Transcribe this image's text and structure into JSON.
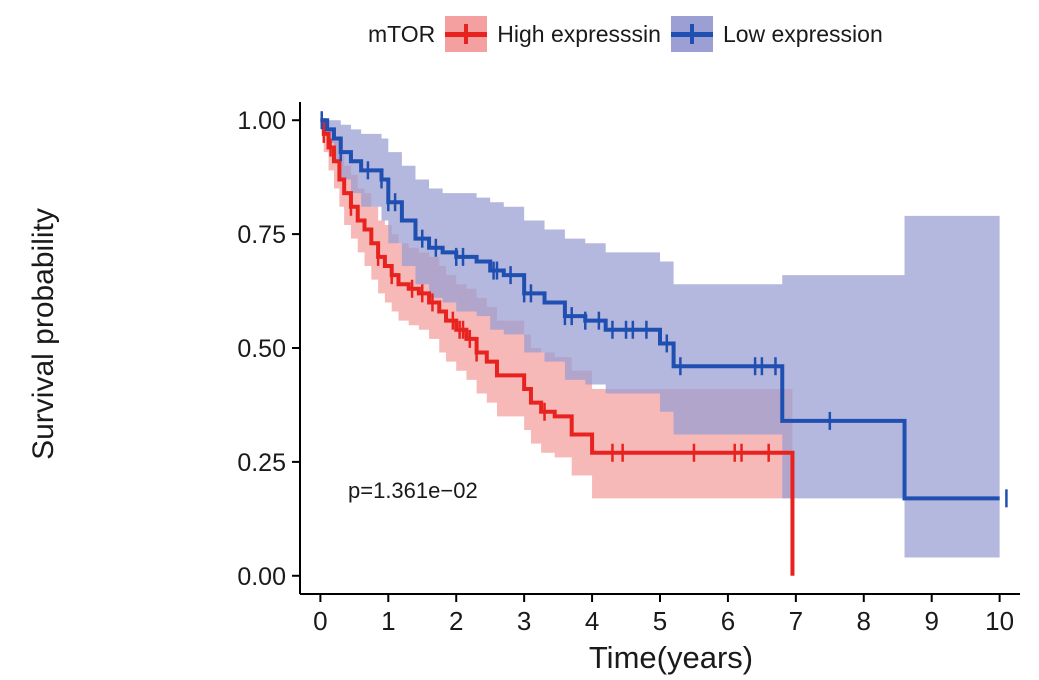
{
  "chart_data": {
    "type": "line",
    "legend": {
      "title": "mTOR",
      "placement": "top"
    },
    "xlabel": "Time(years)",
    "ylabel": "Survival probability",
    "xlim": [
      -0.3,
      10.3
    ],
    "ylim": [
      -0.04,
      1.04
    ],
    "xticks": [
      "0",
      "1",
      "2",
      "3",
      "4",
      "5",
      "6",
      "7",
      "8",
      "9",
      "10"
    ],
    "yticks": [
      "0.00",
      "0.25",
      "0.50",
      "0.75",
      "1.00"
    ],
    "annotation": "p=1.361e−02",
    "series": [
      {
        "name": "High expresssin",
        "color": "#e8231f",
        "band_color": "#f4a0a0",
        "x": [
          0,
          0.05,
          0.12,
          0.2,
          0.28,
          0.35,
          0.45,
          0.55,
          0.65,
          0.75,
          0.85,
          0.95,
          1.05,
          1.15,
          1.3,
          1.45,
          1.6,
          1.75,
          1.85,
          2.0,
          2.15,
          2.3,
          2.45,
          2.6,
          2.8,
          3.0,
          3.1,
          3.25,
          3.45,
          3.7,
          4.0,
          4.3,
          5.5,
          6.0,
          6.9,
          6.95,
          6.95
        ],
        "y": [
          1.0,
          0.97,
          0.94,
          0.91,
          0.87,
          0.84,
          0.81,
          0.78,
          0.76,
          0.73,
          0.7,
          0.68,
          0.66,
          0.64,
          0.63,
          0.62,
          0.6,
          0.58,
          0.56,
          0.54,
          0.52,
          0.49,
          0.47,
          0.44,
          0.44,
          0.41,
          0.38,
          0.36,
          0.35,
          0.31,
          0.27,
          0.27,
          0.27,
          0.27,
          0.27,
          0.27,
          0.0
        ],
        "upper": [
          1.0,
          1.0,
          0.98,
          0.96,
          0.93,
          0.9,
          0.88,
          0.85,
          0.84,
          0.81,
          0.78,
          0.77,
          0.75,
          0.73,
          0.72,
          0.71,
          0.7,
          0.68,
          0.66,
          0.64,
          0.63,
          0.61,
          0.59,
          0.56,
          0.56,
          0.53,
          0.5,
          0.49,
          0.48,
          0.45,
          0.41,
          0.41,
          0.41,
          0.41,
          0.41,
          0.27,
          0.0
        ],
        "lower": [
          1.0,
          0.93,
          0.89,
          0.85,
          0.81,
          0.77,
          0.74,
          0.71,
          0.68,
          0.65,
          0.62,
          0.6,
          0.58,
          0.56,
          0.55,
          0.54,
          0.52,
          0.49,
          0.47,
          0.45,
          0.43,
          0.4,
          0.38,
          0.35,
          0.35,
          0.32,
          0.29,
          0.27,
          0.26,
          0.22,
          0.17,
          0.17,
          0.17,
          0.17,
          0.17,
          0.27,
          0.0
        ],
        "censored_x": [
          0.05,
          0.15,
          0.45,
          0.85,
          1.05,
          1.35,
          1.5,
          1.65,
          1.95,
          2.05,
          2.1,
          2.2,
          2.3,
          3.3,
          4.3,
          4.45,
          5.5,
          6.1,
          6.2,
          6.6
        ]
      },
      {
        "name": "Low expression",
        "color": "#1f4fb0",
        "band_color": "#9b9fd3",
        "x": [
          0,
          0.1,
          0.2,
          0.3,
          0.45,
          0.6,
          0.9,
          1.0,
          1.2,
          1.4,
          1.6,
          1.8,
          2.0,
          2.3,
          2.5,
          2.7,
          3.0,
          3.3,
          3.6,
          3.9,
          4.2,
          4.6,
          5.0,
          5.2,
          6.6,
          6.8,
          7.4,
          8.6,
          10.0
        ],
        "y": [
          1.0,
          0.98,
          0.96,
          0.93,
          0.91,
          0.89,
          0.87,
          0.82,
          0.78,
          0.74,
          0.72,
          0.71,
          0.7,
          0.69,
          0.67,
          0.66,
          0.62,
          0.6,
          0.57,
          0.56,
          0.54,
          0.54,
          0.51,
          0.46,
          0.46,
          0.34,
          0.34,
          0.17,
          0.17
        ],
        "upper": [
          1.0,
          1.0,
          1.0,
          0.99,
          0.98,
          0.97,
          0.96,
          0.93,
          0.9,
          0.87,
          0.85,
          0.84,
          0.84,
          0.83,
          0.82,
          0.81,
          0.78,
          0.76,
          0.74,
          0.73,
          0.71,
          0.71,
          0.69,
          0.64,
          0.64,
          0.66,
          0.66,
          0.79,
          0.79
        ],
        "lower": [
          1.0,
          0.95,
          0.91,
          0.87,
          0.84,
          0.81,
          0.78,
          0.73,
          0.68,
          0.64,
          0.61,
          0.6,
          0.58,
          0.57,
          0.54,
          0.53,
          0.49,
          0.47,
          0.43,
          0.42,
          0.4,
          0.4,
          0.36,
          0.31,
          0.31,
          0.17,
          0.17,
          0.04,
          0.04
        ],
        "censored_x": [
          0.02,
          0.3,
          0.7,
          0.9,
          1.0,
          1.1,
          1.5,
          1.7,
          2.0,
          2.1,
          2.55,
          2.6,
          2.8,
          3.0,
          3.1,
          3.6,
          3.7,
          3.9,
          4.1,
          4.3,
          4.5,
          4.6,
          4.8,
          5.1,
          5.3,
          6.4,
          6.5,
          6.7,
          7.5,
          10.1
        ]
      }
    ]
  }
}
